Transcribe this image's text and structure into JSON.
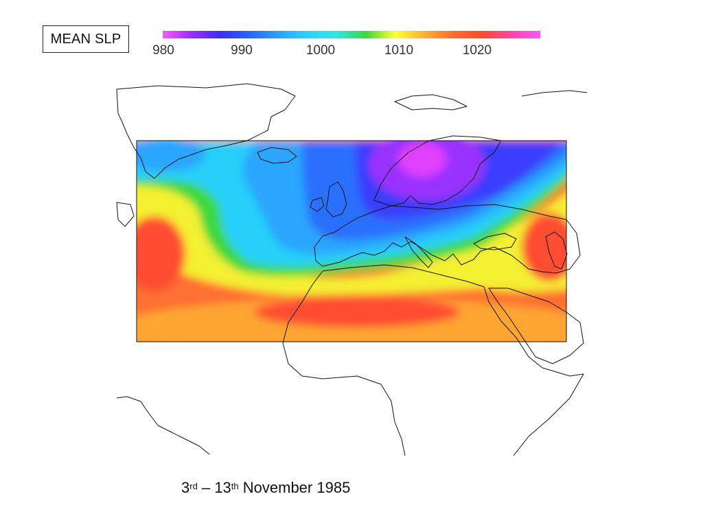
{
  "title": "MEAN SLP",
  "colorbar": {
    "ticks": [
      "980",
      "990",
      "1000",
      "1010",
      "1020"
    ],
    "stops": [
      "#ff55ff",
      "#9a2cff",
      "#3a2cff",
      "#2468ff",
      "#2aa2ff",
      "#2ad4ff",
      "#2ee6e6",
      "#3cd83c",
      "#ffff30",
      "#ffb030",
      "#ff6a2a",
      "#ff4a2a",
      "#ff44aa",
      "#ff55ff"
    ]
  },
  "caption": {
    "day_start": "3",
    "suffix_start": "rd",
    "dash": "–",
    "day_end": "13",
    "suffix_end": "th",
    "month_year": "November 1985"
  },
  "map": {
    "field_colors": {
      "low_core": "#e040ff",
      "low": "#9a30ff",
      "deep_blue": "#3a3cff",
      "blue": "#2a70ff",
      "light_blue": "#2aa6ff",
      "cyan": "#28d0f8",
      "green": "#3cd83c",
      "yellow": "#f4f030",
      "orange": "#ffa530",
      "red_orange": "#ff7030",
      "red": "#ff4e30"
    },
    "coastline_color": "#111111"
  }
}
